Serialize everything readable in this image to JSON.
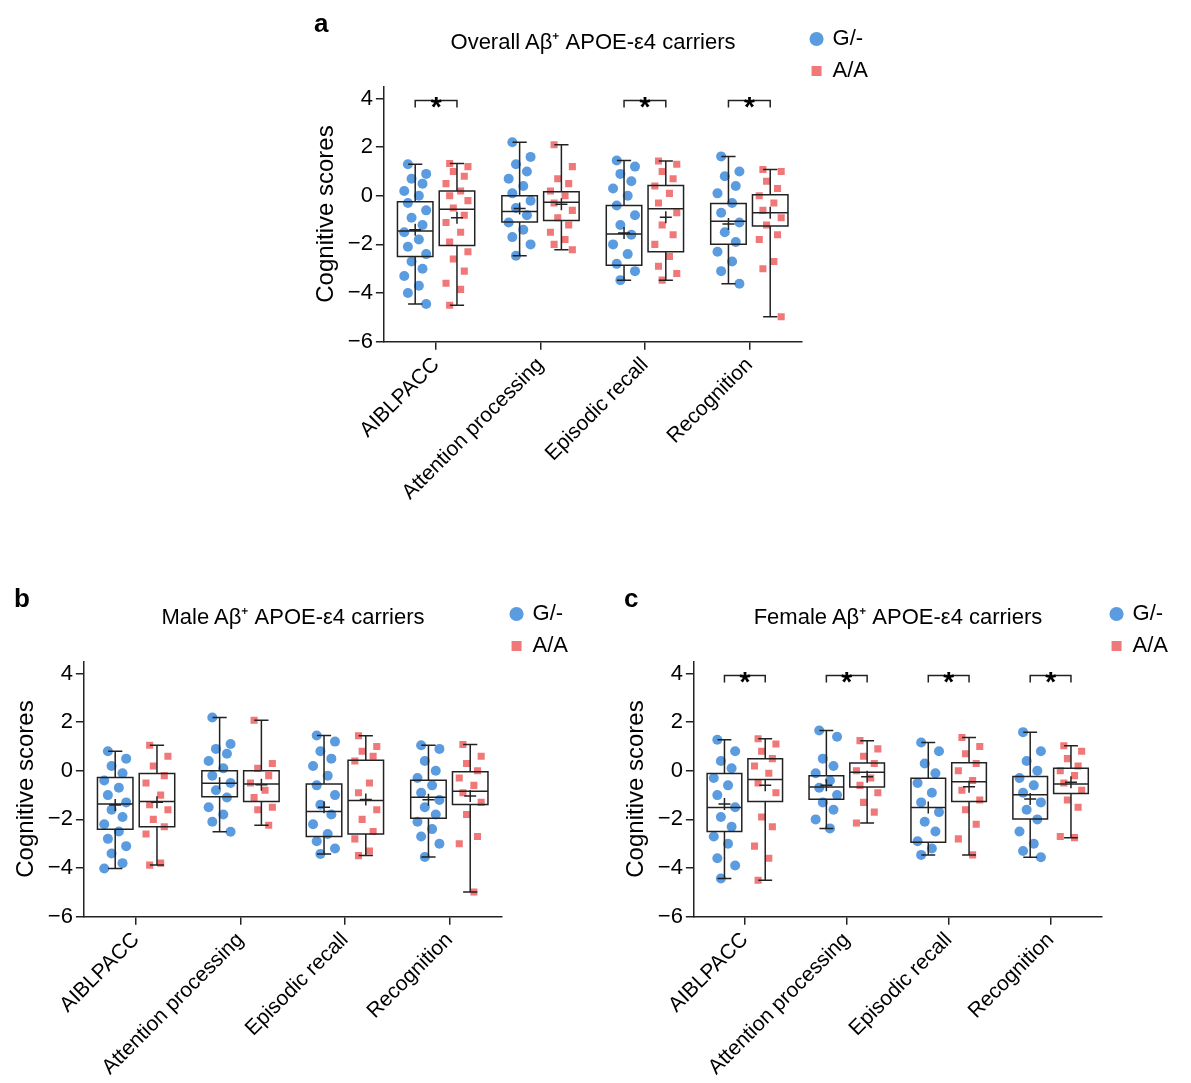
{
  "chart_data": [
    {
      "type": "box",
      "title": "Overall Aβ⁺ APOE-ε4 carriers",
      "ylabel": "Cognitive scores",
      "categories": [
        "AIBLPACC",
        "Attention processing",
        "Episodic recall",
        "Recognition"
      ],
      "ylim": [
        -6,
        4.5
      ],
      "yticks": [
        {
          "value": -6,
          "label": "−6"
        },
        {
          "value": -4,
          "label": "−4"
        },
        {
          "value": -2,
          "label": "−2"
        },
        0,
        2,
        4
      ],
      "legend": "top right",
      "grid": false,
      "annotations": [
        "a",
        "*",
        "*",
        "*"
      ],
      "series": [
        {
          "color": "#222222",
          "boxes": [
            {
              "low": -4.45,
              "q1": -2.5,
              "median": -1.45,
              "q3": -0.25,
              "high": 1.3,
              "mean": -1.4
            },
            {
              "low": -2.47,
              "q1": -1.08,
              "median": -0.65,
              "q3": 0,
              "high": 2.2,
              "mean": -0.52
            },
            {
              "low": -3.47,
              "q1": -2.86,
              "median": -1.57,
              "q3": -0.4,
              "high": 1.45,
              "mean": -1.53
            },
            {
              "low": -3.62,
              "q1": -1.99,
              "median": -1.05,
              "q3": -0.32,
              "high": 1.62,
              "mean": -1.16
            }
          ]
        },
        {
          "color": "#222222",
          "boxes": [
            {
              "low": -4.5,
              "q1": -2.05,
              "median": -0.55,
              "q3": 0.2,
              "high": 1.33,
              "mean": -0.9
            },
            {
              "low": -2.22,
              "q1": -1.02,
              "median": -0.27,
              "q3": 0.17,
              "high": 2.1,
              "mean": -0.35
            },
            {
              "low": -3.47,
              "q1": -2.3,
              "median": -0.53,
              "q3": 0.42,
              "high": 1.43,
              "mean": -0.88
            },
            {
              "low": -4.98,
              "q1": -1.24,
              "median": -0.7,
              "q3": 0.04,
              "high": 1.08,
              "mean": -0.7
            }
          ]
        },
        {
          "type": "scatter",
          "name": "G/-",
          "color": "#5b9be0",
          "marker": "circle",
          "x": [
            "AIBLPACC",
            "AIBLPACC",
            "AIBLPACC",
            "AIBLPACC",
            "AIBLPACC",
            "AIBLPACC",
            "AIBLPACC",
            "AIBLPACC",
            "AIBLPACC",
            "AIBLPACC",
            "AIBLPACC",
            "AIBLPACC",
            "AIBLPACC",
            "AIBLPACC",
            "AIBLPACC",
            "AIBLPACC",
            "AIBLPACC",
            "AIBLPACC",
            "AIBLPACC",
            "AIBLPACC",
            "Attention processing",
            "Attention processing",
            "Attention processing",
            "Attention processing",
            "Attention processing",
            "Attention processing",
            "Attention processing",
            "Attention processing",
            "Attention processing",
            "Attention processing",
            "Attention processing",
            "Attention processing",
            "Attention processing",
            "Attention processing",
            "Attention processing",
            "Episodic recall",
            "Episodic recall",
            "Episodic recall",
            "Episodic recall",
            "Episodic recall",
            "Episodic recall",
            "Episodic recall",
            "Episodic recall",
            "Episodic recall",
            "Episodic recall",
            "Episodic recall",
            "Episodic recall",
            "Episodic recall",
            "Episodic recall",
            "Episodic recall",
            "Recognition",
            "Recognition",
            "Recognition",
            "Recognition",
            "Recognition",
            "Recognition",
            "Recognition",
            "Recognition",
            "Recognition",
            "Recognition",
            "Recognition",
            "Recognition",
            "Recognition",
            "Recognition"
          ],
          "values": [
            1.3,
            0.9,
            0.7,
            0.5,
            0.2,
            0,
            -0.3,
            -0.6,
            -0.9,
            -1.2,
            -1.5,
            -1.8,
            -2.1,
            -2.4,
            -2.7,
            -3.0,
            -3.3,
            -3.7,
            -4.0,
            -4.45,
            2.2,
            1.6,
            1.3,
            1.0,
            0.7,
            0.4,
            0.1,
            -0.2,
            -0.5,
            -0.8,
            -1.1,
            -1.4,
            -1.7,
            -2.0,
            -2.47,
            1.45,
            1.2,
            0.9,
            0.6,
            0.3,
            0,
            -0.4,
            -0.8,
            -1.2,
            -1.6,
            -2.0,
            -2.4,
            -2.8,
            -3.1,
            -3.47,
            1.62,
            1.0,
            0.8,
            0.4,
            0.1,
            -0.3,
            -0.7,
            -1.1,
            -1.5,
            -1.9,
            -2.3,
            -2.7,
            -3.1,
            -3.62
          ]
        },
        {
          "type": "scatter",
          "name": "A/A",
          "color": "#f07878",
          "marker": "square",
          "x": [
            "AIBLPACC",
            "AIBLPACC",
            "AIBLPACC",
            "AIBLPACC",
            "AIBLPACC",
            "AIBLPACC",
            "AIBLPACC",
            "AIBLPACC",
            "AIBLPACC",
            "AIBLPACC",
            "AIBLPACC",
            "AIBLPACC",
            "AIBLPACC",
            "AIBLPACC",
            "AIBLPACC",
            "AIBLPACC",
            "AIBLPACC",
            "AIBLPACC",
            "AIBLPACC",
            "Attention processing",
            "Attention processing",
            "Attention processing",
            "Attention processing",
            "Attention processing",
            "Attention processing",
            "Attention processing",
            "Attention processing",
            "Attention processing",
            "Attention processing",
            "Attention processing",
            "Attention processing",
            "Attention processing",
            "Attention processing",
            "Episodic recall",
            "Episodic recall",
            "Episodic recall",
            "Episodic recall",
            "Episodic recall",
            "Episodic recall",
            "Episodic recall",
            "Episodic recall",
            "Episodic recall",
            "Episodic recall",
            "Episodic recall",
            "Episodic recall",
            "Episodic recall",
            "Episodic recall",
            "Episodic recall",
            "Recognition",
            "Recognition",
            "Recognition",
            "Recognition",
            "Recognition",
            "Recognition",
            "Recognition",
            "Recognition",
            "Recognition",
            "Recognition",
            "Recognition",
            "Recognition",
            "Recognition",
            "Recognition"
          ],
          "values": [
            1.33,
            1.2,
            1.0,
            0.8,
            0.5,
            0.2,
            0,
            -0.2,
            -0.5,
            -0.8,
            -1.1,
            -1.5,
            -1.9,
            -2.3,
            -2.6,
            -3.1,
            -3.6,
            -3.85,
            -4.5,
            2.1,
            1.2,
            0.7,
            0.5,
            0.2,
            0,
            -0.3,
            -0.6,
            -0.9,
            -1.2,
            -1.5,
            -1.8,
            -2.0,
            -2.22,
            1.43,
            1.3,
            1.0,
            0.7,
            0.4,
            0.1,
            -0.3,
            -0.7,
            -1.2,
            -1.6,
            -2.0,
            -2.5,
            -2.9,
            -3.2,
            -3.47,
            1.08,
            1.0,
            0.6,
            0.3,
            0,
            -0.3,
            -0.6,
            -0.9,
            -1.2,
            -1.6,
            -1.8,
            -2.7,
            -3.0,
            -4.98
          ]
        }
      ]
    },
    {
      "type": "box",
      "title": "Male Aβ⁺ APOE-ε4 carriers",
      "ylabel": "Cognitive scores",
      "categories": [
        "AIBLPACC",
        "Attention processing",
        "Episodic recall",
        "Recognition"
      ],
      "ylim": [
        -6,
        4.5
      ],
      "yticks": [
        {
          "value": -6,
          "label": "−6"
        },
        {
          "value": -4,
          "label": "−4"
        },
        {
          "value": -2,
          "label": "−2"
        },
        0,
        2,
        4
      ],
      "legend": "top right",
      "grid": false,
      "annotations": [
        "b"
      ],
      "series": [
        {
          "color": "#222222",
          "boxes": [
            {
              "low": -4.02,
              "q1": -2.41,
              "median": -1.37,
              "q3": -0.28,
              "high": 0.8,
              "mean": -1.41
            },
            {
              "low": -2.51,
              "q1": -1.07,
              "median": -0.51,
              "q3": 0,
              "high": 2.19,
              "mean": -0.51
            },
            {
              "low": -3.42,
              "q1": -2.7,
              "median": -1.68,
              "q3": -0.54,
              "high": 1.45,
              "mean": -1.5
            },
            {
              "low": -3.55,
              "q1": -1.95,
              "median": -1.09,
              "q3": -0.39,
              "high": 1.05,
              "mean": -1.19
            }
          ]
        },
        {
          "color": "#222222",
          "boxes": [
            {
              "low": -3.88,
              "q1": -2.3,
              "median": -1.26,
              "q3": -0.11,
              "high": 1.05,
              "mean": -1.29
            },
            {
              "low": -2.24,
              "q1": -1.26,
              "median": -0.54,
              "q3": 0,
              "high": 2.08,
              "mean": -0.57
            },
            {
              "low": -3.49,
              "q1": -2.6,
              "median": -1.22,
              "q3": 0.43,
              "high": 1.44,
              "mean": -1.18
            },
            {
              "low": -4.99,
              "q1": -1.39,
              "median": -0.84,
              "q3": -0.04,
              "high": 1.08,
              "mean": -1.04
            }
          ]
        },
        {
          "type": "scatter",
          "name": "G/-",
          "color": "#5b9be0",
          "marker": "circle",
          "x": [
            "AIBLPACC",
            "AIBLPACC",
            "AIBLPACC",
            "AIBLPACC",
            "AIBLPACC",
            "AIBLPACC",
            "AIBLPACC",
            "AIBLPACC",
            "AIBLPACC",
            "AIBLPACC",
            "AIBLPACC",
            "AIBLPACC",
            "AIBLPACC",
            "AIBLPACC",
            "AIBLPACC",
            "AIBLPACC",
            "AIBLPACC",
            "Attention processing",
            "Attention processing",
            "Attention processing",
            "Attention processing",
            "Attention processing",
            "Attention processing",
            "Attention processing",
            "Attention processing",
            "Attention processing",
            "Attention processing",
            "Attention processing",
            "Attention processing",
            "Attention processing",
            "Attention processing",
            "Episodic recall",
            "Episodic recall",
            "Episodic recall",
            "Episodic recall",
            "Episodic recall",
            "Episodic recall",
            "Episodic recall",
            "Episodic recall",
            "Episodic recall",
            "Episodic recall",
            "Episodic recall",
            "Episodic recall",
            "Episodic recall",
            "Episodic recall",
            "Episodic recall",
            "Recognition",
            "Recognition",
            "Recognition",
            "Recognition",
            "Recognition",
            "Recognition",
            "Recognition",
            "Recognition",
            "Recognition",
            "Recognition",
            "Recognition",
            "Recognition",
            "Recognition",
            "Recognition",
            "Recognition"
          ],
          "values": [
            0.8,
            0.5,
            0.2,
            -0.1,
            -0.4,
            -0.7,
            -1.0,
            -1.3,
            -1.6,
            -1.9,
            -2.2,
            -2.5,
            -2.8,
            -3.1,
            -3.4,
            -3.8,
            -4.02,
            2.19,
            1.1,
            0.9,
            0.7,
            0.4,
            0.1,
            -0.2,
            -0.5,
            -0.8,
            -1.1,
            -1.5,
            -1.8,
            -2.1,
            -2.51,
            1.45,
            1.2,
            0.8,
            0.5,
            0.2,
            -0.2,
            -0.6,
            -1.0,
            -1.4,
            -1.8,
            -2.2,
            -2.6,
            -2.9,
            -3.2,
            -3.42,
            1.05,
            0.9,
            0.4,
            0,
            -0.3,
            -0.6,
            -0.9,
            -1.2,
            -1.5,
            -1.8,
            -2.1,
            -2.4,
            -2.7,
            -3.0,
            -3.55
          ]
        },
        {
          "type": "scatter",
          "name": "A/A",
          "color": "#f07878",
          "marker": "square",
          "x": [
            "AIBLPACC",
            "AIBLPACC",
            "AIBLPACC",
            "AIBLPACC",
            "AIBLPACC",
            "AIBLPACC",
            "AIBLPACC",
            "AIBLPACC",
            "AIBLPACC",
            "AIBLPACC",
            "AIBLPACC",
            "AIBLPACC",
            "AIBLPACC",
            "Attention processing",
            "Attention processing",
            "Attention processing",
            "Attention processing",
            "Attention processing",
            "Attention processing",
            "Attention processing",
            "Attention processing",
            "Attention processing",
            "Attention processing",
            "Episodic recall",
            "Episodic recall",
            "Episodic recall",
            "Episodic recall",
            "Episodic recall",
            "Episodic recall",
            "Episodic recall",
            "Episodic recall",
            "Episodic recall",
            "Episodic recall",
            "Episodic recall",
            "Episodic recall",
            "Episodic recall",
            "Recognition",
            "Recognition",
            "Recognition",
            "Recognition",
            "Recognition",
            "Recognition",
            "Recognition",
            "Recognition",
            "Recognition",
            "Recognition",
            "Recognition",
            "Recognition"
          ],
          "values": [
            1.05,
            0.6,
            0.2,
            -0.2,
            -0.5,
            -1.0,
            -1.4,
            -1.6,
            -2.0,
            -2.3,
            -2.6,
            -3.8,
            -3.88,
            2.08,
            0.3,
            0.1,
            -0.2,
            -0.5,
            -0.8,
            -1.1,
            -1.5,
            -1.6,
            -2.24,
            1.44,
            1.0,
            0.8,
            0.6,
            0.4,
            -0.5,
            -0.9,
            -1.6,
            -2.0,
            -2.5,
            -2.8,
            -3.3,
            -3.49,
            1.08,
            0.6,
            0.3,
            0,
            -0.3,
            -0.6,
            -0.9,
            -1.3,
            -1.8,
            -2.7,
            -3.0,
            -4.99
          ]
        }
      ]
    },
    {
      "type": "box",
      "title": "Female Aβ⁺ APOE-ε4 carriers",
      "ylabel": "Cognitive scores",
      "categories": [
        "AIBLPACC",
        "Attention processing",
        "Episodic recall",
        "Recognition"
      ],
      "ylim": [
        -6,
        4.5
      ],
      "yticks": [
        {
          "value": -6,
          "label": "−6"
        },
        {
          "value": -4,
          "label": "−4"
        },
        {
          "value": -2,
          "label": "−2"
        },
        0,
        2,
        4
      ],
      "legend": "top right",
      "grid": false,
      "annotations": [
        "c",
        "*",
        "*",
        "*",
        "*"
      ],
      "series": [
        {
          "color": "#222222",
          "boxes": [
            {
              "low": -4.43,
              "q1": -2.5,
              "median": -1.51,
              "q3": -0.11,
              "high": 1.28,
              "mean": -1.37
            },
            {
              "low": -2.37,
              "q1": -1.17,
              "median": -0.67,
              "q3": -0.2,
              "high": 1.66,
              "mean": -0.6
            },
            {
              "low": -3.46,
              "q1": -2.94,
              "median": -1.51,
              "q3": -0.31,
              "high": 1.16,
              "mean": -1.51
            },
            {
              "low": -3.56,
              "q1": -1.98,
              "median": -0.99,
              "q3": -0.24,
              "high": 1.59,
              "mean": -1.16
            }
          ]
        },
        {
          "color": "#222222",
          "boxes": [
            {
              "low": -4.5,
              "q1": -1.26,
              "median": -0.36,
              "q3": 0.5,
              "high": 1.32,
              "mean": -0.59
            },
            {
              "low": -2.15,
              "q1": -0.67,
              "median": -0.06,
              "q3": 0.32,
              "high": 1.24,
              "mean": -0.25
            },
            {
              "low": -3.46,
              "q1": -1.26,
              "median": -0.45,
              "q3": 0.33,
              "high": 1.37,
              "mean": -0.66
            },
            {
              "low": -2.75,
              "q1": -0.93,
              "median": -0.54,
              "q3": 0.1,
              "high": 1.03,
              "mean": -0.47
            }
          ]
        },
        {
          "type": "scatter",
          "name": "G/-",
          "color": "#5b9be0",
          "marker": "circle",
          "x": [
            "AIBLPACC",
            "AIBLPACC",
            "AIBLPACC",
            "AIBLPACC",
            "AIBLPACC",
            "AIBLPACC",
            "AIBLPACC",
            "AIBLPACC",
            "AIBLPACC",
            "AIBLPACC",
            "AIBLPACC",
            "AIBLPACC",
            "AIBLPACC",
            "AIBLPACC",
            "AIBLPACC",
            "Attention processing",
            "Attention processing",
            "Attention processing",
            "Attention processing",
            "Attention processing",
            "Attention processing",
            "Attention processing",
            "Attention processing",
            "Attention processing",
            "Attention processing",
            "Attention processing",
            "Attention processing",
            "Episodic recall",
            "Episodic recall",
            "Episodic recall",
            "Episodic recall",
            "Episodic recall",
            "Episodic recall",
            "Episodic recall",
            "Episodic recall",
            "Episodic recall",
            "Episodic recall",
            "Episodic recall",
            "Episodic recall",
            "Episodic recall",
            "Recognition",
            "Recognition",
            "Recognition",
            "Recognition",
            "Recognition",
            "Recognition",
            "Recognition",
            "Recognition",
            "Recognition",
            "Recognition",
            "Recognition",
            "Recognition",
            "Recognition",
            "Recognition"
          ],
          "values": [
            1.28,
            0.8,
            0.4,
            0.1,
            -0.3,
            -0.6,
            -1.0,
            -1.5,
            -1.9,
            -2.3,
            -2.7,
            -3.0,
            -3.6,
            -3.9,
            -4.43,
            1.66,
            1.4,
            0.5,
            0.2,
            -0.1,
            -0.4,
            -0.7,
            -1.0,
            -1.3,
            -1.6,
            -2.0,
            -2.37,
            1.16,
            0.8,
            0.3,
            -0.1,
            -0.5,
            -0.9,
            -1.3,
            -1.7,
            -2.1,
            -2.5,
            -2.9,
            -3.2,
            -3.46,
            1.59,
            0.8,
            0.4,
            0,
            -0.3,
            -0.6,
            -0.9,
            -1.3,
            -1.6,
            -2.0,
            -2.5,
            -3.0,
            -3.3,
            -3.56
          ]
        },
        {
          "type": "scatter",
          "name": "A/A",
          "color": "#f07878",
          "marker": "square",
          "x": [
            "AIBLPACC",
            "AIBLPACC",
            "AIBLPACC",
            "AIBLPACC",
            "AIBLPACC",
            "AIBLPACC",
            "AIBLPACC",
            "AIBLPACC",
            "AIBLPACC",
            "AIBLPACC",
            "AIBLPACC",
            "AIBLPACC",
            "AIBLPACC",
            "Attention processing",
            "Attention processing",
            "Attention processing",
            "Attention processing",
            "Attention processing",
            "Attention processing",
            "Attention processing",
            "Attention processing",
            "Attention processing",
            "Attention processing",
            "Attention processing",
            "Episodic recall",
            "Episodic recall",
            "Episodic recall",
            "Episodic recall",
            "Episodic recall",
            "Episodic recall",
            "Episodic recall",
            "Episodic recall",
            "Episodic recall",
            "Episodic recall",
            "Episodic recall",
            "Episodic recall",
            "Recognition",
            "Recognition",
            "Recognition",
            "Recognition",
            "Recognition",
            "Recognition",
            "Recognition",
            "Recognition",
            "Recognition",
            "Recognition",
            "Recognition",
            "Recognition"
          ],
          "values": [
            1.32,
            1.1,
            0.8,
            0.5,
            0.2,
            -0.1,
            -0.5,
            -0.9,
            -1.9,
            -2.3,
            -3.1,
            -3.6,
            -4.5,
            1.24,
            0.9,
            0.6,
            0.3,
            0,
            -0.3,
            -0.6,
            -0.9,
            -1.3,
            -1.7,
            -2.15,
            1.37,
            1.0,
            0.7,
            0.3,
            0,
            -0.4,
            -0.8,
            -1.2,
            -1.6,
            -2.2,
            -2.8,
            -3.46,
            1.03,
            0.8,
            0.5,
            0.2,
            0,
            -0.2,
            -0.5,
            -0.8,
            -1.2,
            -1.5,
            -2.7,
            -2.75
          ]
        }
      ]
    }
  ]
}
